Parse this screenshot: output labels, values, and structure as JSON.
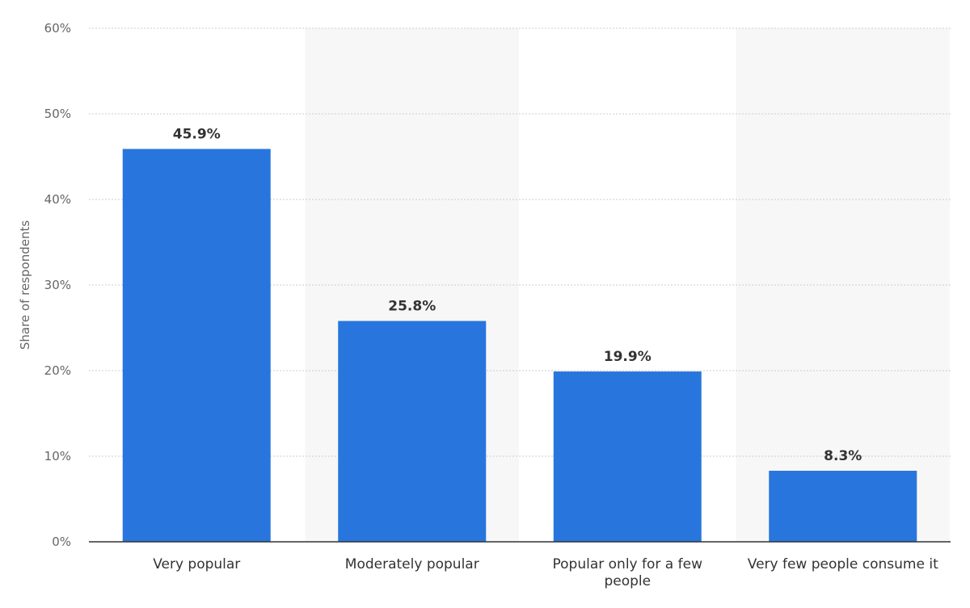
{
  "chart_data": {
    "type": "bar",
    "categories": [
      "Very popular",
      "Moderately popular",
      "Popular only for a few people",
      "Very few people consume it"
    ],
    "category_label_lines": [
      [
        "Very popular"
      ],
      [
        "Moderately popular"
      ],
      [
        "Popular only for a few",
        "people"
      ],
      [
        "Very few people consume it"
      ]
    ],
    "values": [
      45.9,
      25.8,
      19.9,
      8.3
    ],
    "data_labels": [
      "45.9%",
      "25.8%",
      "19.9%",
      "8.3%"
    ],
    "ylabel": "Share of respondents",
    "xlabel": "",
    "ylim": [
      0,
      60
    ],
    "yticks": [
      0,
      10,
      20,
      30,
      40,
      50,
      60
    ],
    "ytick_labels": [
      "0%",
      "10%",
      "20%",
      "30%",
      "40%",
      "50%",
      "60%"
    ],
    "grid": true,
    "alternating_band_color": "#f7f7f7",
    "bar_color": "#2876dd",
    "gridline_color": "#cccccc",
    "axis_color": "#333333"
  }
}
